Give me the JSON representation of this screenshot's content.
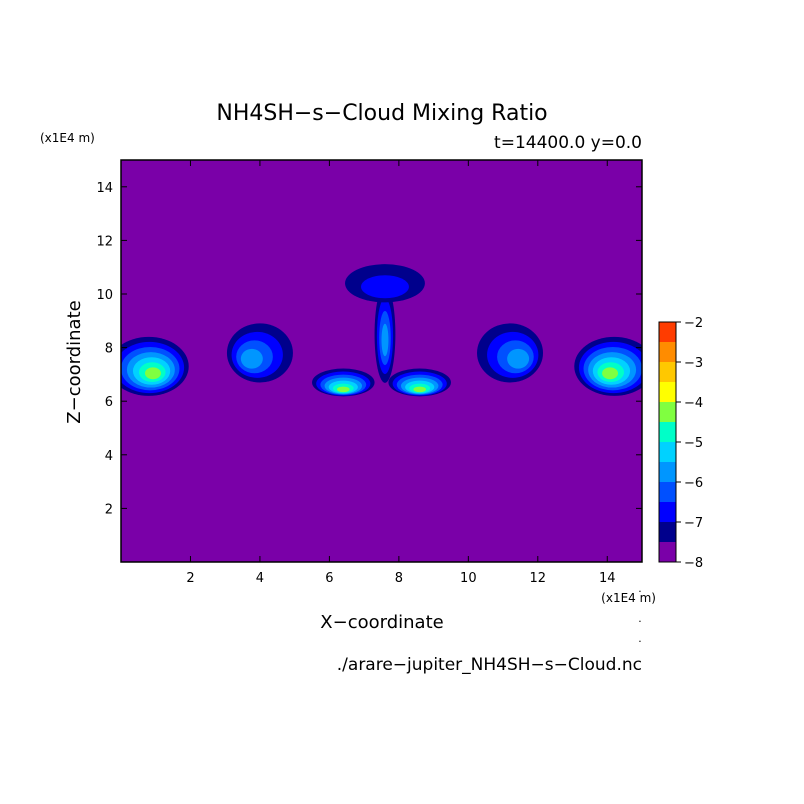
{
  "chart_data": {
    "type": "contour",
    "title": "NH4SH−s−Cloud Mixing Ratio",
    "subtitle": "t=14400.0 y=0.0",
    "xlabel": "X−coordinate",
    "ylabel": "Z−coordinate",
    "x_unit": "(x1E4 m)",
    "y_unit": "(x1E4 m)",
    "xlim": [
      0,
      15
    ],
    "ylim": [
      0,
      15
    ],
    "x_ticks": [
      2,
      4,
      6,
      8,
      10,
      12,
      14
    ],
    "y_ticks": [
      2,
      4,
      6,
      8,
      10,
      12,
      14
    ],
    "background_level": -8,
    "colorbar": {
      "ticks": [
        -2,
        -3,
        -4,
        -5,
        -6,
        -7,
        -8
      ],
      "levels": [
        -8,
        -7.5,
        -7,
        -6.5,
        -6,
        -5.5,
        -5,
        -4.5,
        -4,
        -3.5,
        -3,
        -2.5,
        -2
      ],
      "colors": [
        "#7a00a8",
        "#00008c",
        "#0000ff",
        "#0050ff",
        "#0096ff",
        "#00d2ff",
        "#00ffc8",
        "#80ff40",
        "#ffff00",
        "#ffc800",
        "#ff8c00",
        "#ff3c00",
        "#ff0000",
        "#ffaaaa"
      ]
    },
    "clouds": [
      {
        "name": "left-edge-plume",
        "x": 0.8,
        "z": 7.3,
        "peak": -4.3
      },
      {
        "name": "left-tilted-plume",
        "x": 4.0,
        "z": 7.8,
        "peak": -5.7
      },
      {
        "name": "left-central-cloud",
        "x": 6.4,
        "z": 6.7,
        "peak": -4.3
      },
      {
        "name": "central-mushroom-stem",
        "x": 7.6,
        "z": 8.5,
        "peak": -5.8
      },
      {
        "name": "central-mushroom-cap",
        "x": 7.6,
        "z": 10.4,
        "peak": -7.0
      },
      {
        "name": "right-central-cloud",
        "x": 8.6,
        "z": 6.7,
        "peak": -4.3
      },
      {
        "name": "right-tilted-plume",
        "x": 11.2,
        "z": 7.8,
        "peak": -5.7
      },
      {
        "name": "right-edge-plume",
        "x": 14.2,
        "z": 7.3,
        "peak": -4.3
      }
    ]
  },
  "footer": {
    "filename": "./arare−jupiter_NH4SH−s−Cloud.nc"
  }
}
